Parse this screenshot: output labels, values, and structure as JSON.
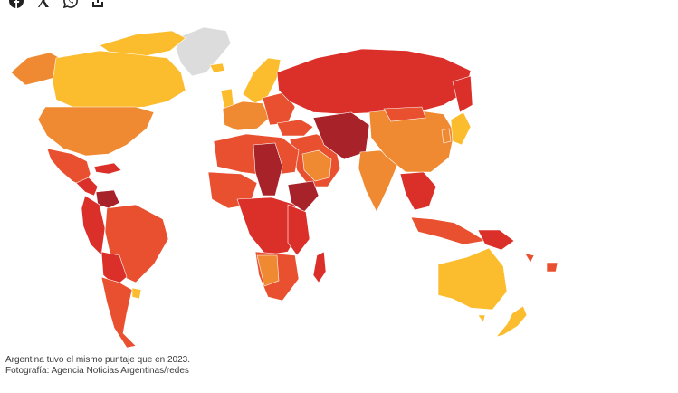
{
  "share": {
    "icons": [
      "facebook-icon",
      "x-icon",
      "whatsapp-icon",
      "share-icon"
    ]
  },
  "map": {
    "colors": {
      "very_high": "#fbbd2e",
      "high": "#f08a32",
      "medium": "#e8502f",
      "low": "#db2f2a",
      "very_low": "#a8222a",
      "no_data": "#dcdcdc"
    }
  },
  "caption": {
    "text": "Argentina tuvo el mismo puntaje que en 2023.",
    "credit": "Fotografía: Agencia Noticias Argentinas/redes"
  }
}
